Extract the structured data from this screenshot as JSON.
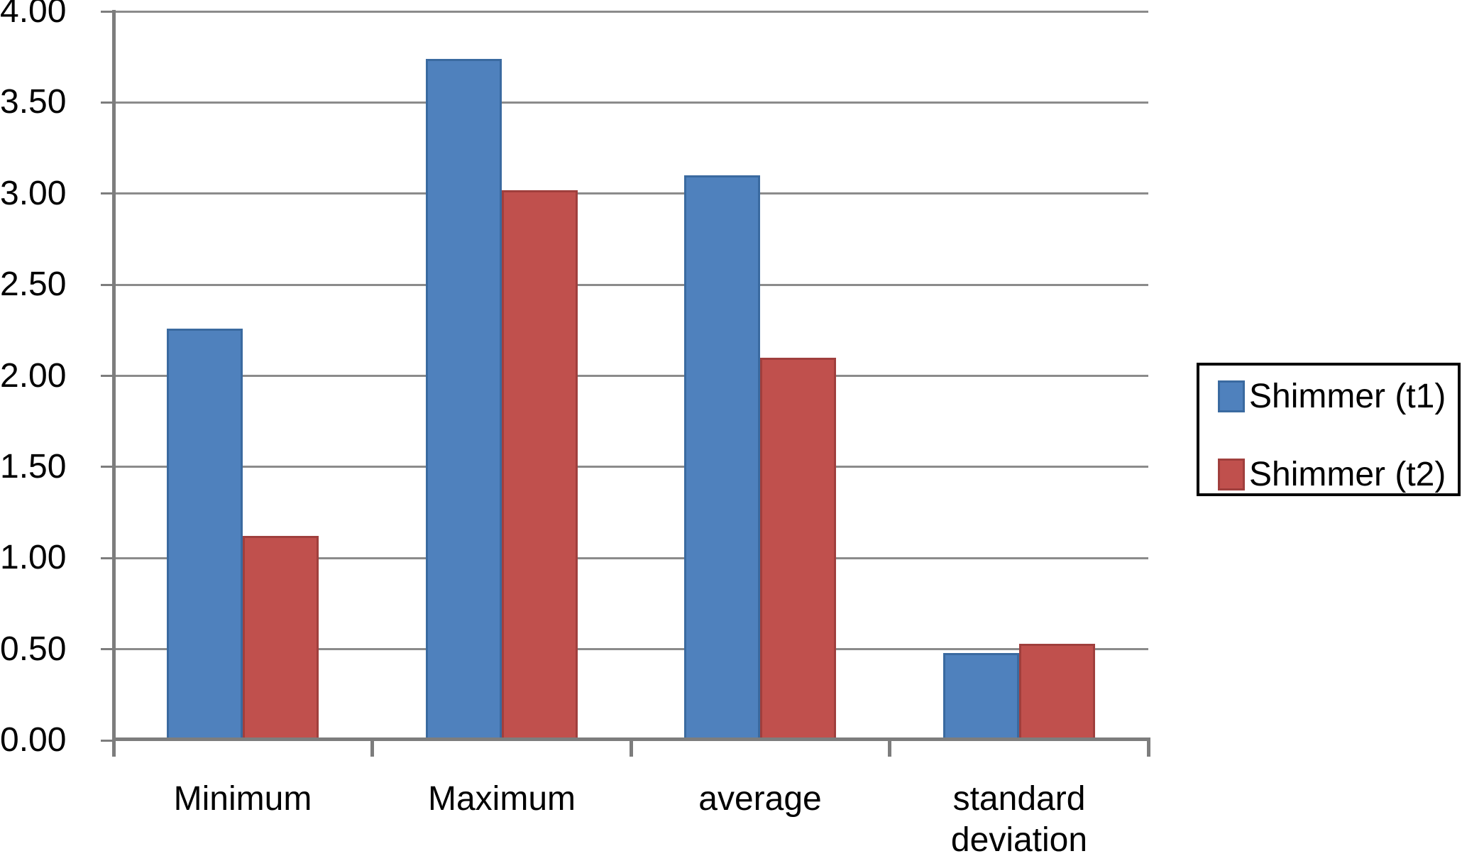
{
  "chart_data": {
    "type": "bar",
    "title": "",
    "xlabel": "",
    "ylabel": "",
    "categories": [
      "Minimum",
      "Maximum",
      "average",
      "standard deviation"
    ],
    "series": [
      {
        "name": "Shimmer (t1)",
        "color": "#4f81bd",
        "edge_color": "#3a6aa0",
        "values": [
          2.26,
          3.74,
          3.1,
          0.48
        ]
      },
      {
        "name": "Shimmer (t2)",
        "color": "#c0504d",
        "edge_color": "#a03f3d",
        "values": [
          1.12,
          3.02,
          2.1,
          0.53
        ]
      }
    ],
    "ylim": [
      0,
      4
    ],
    "y_ticks": [
      0,
      0.5,
      1,
      1.5,
      2,
      2.5,
      3,
      3.5,
      4
    ],
    "y_tick_labels": [
      "0.00",
      "0.50",
      "1.00",
      "1.50",
      "2.00",
      "2.50",
      "3.00",
      "3.50",
      "4.00"
    ],
    "grid": true,
    "grid_color": "#8b8b8b",
    "axis_color": "#7d7d7d",
    "background_color": "#ffffff",
    "legend": {
      "position": "right",
      "border_color": "#000000"
    }
  }
}
